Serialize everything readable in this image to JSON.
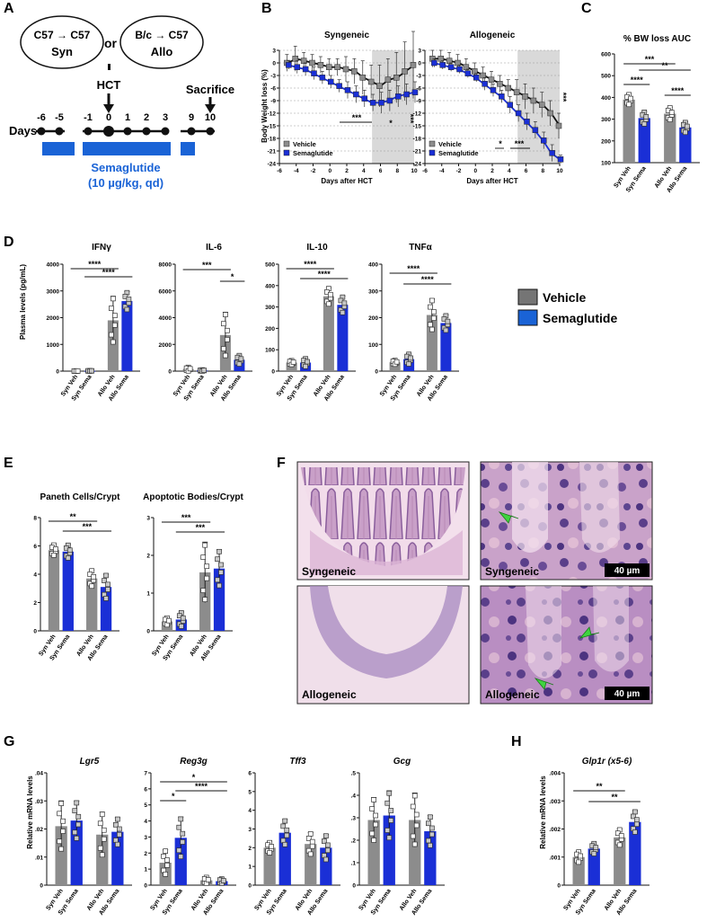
{
  "colors": {
    "vehicle": "#8c8c8c",
    "semaglutide": "#1a2fd6",
    "accent_blue": "#1a63d6",
    "shade": "#d9d9d9",
    "arrow_green": "#3fd43f"
  },
  "panel_letters": [
    "A",
    "B",
    "C",
    "D",
    "E",
    "F",
    "G",
    "H"
  ],
  "panelA": {
    "syn_label_top": "C57 → C57",
    "syn_label": "Syn",
    "or_label": "or",
    "allo_label_top": "B/c → C57",
    "allo_label": "Allo",
    "hct_label": "HCT",
    "sacrifice_label": "Sacrifice",
    "days_label": "Days",
    "day_ticks": [
      "-6",
      "-5",
      "-1",
      "0",
      "1",
      "2",
      "3",
      "9",
      "10"
    ],
    "drug_label": "Semaglutide",
    "dose_label": "(10 µg/kg, qd)"
  },
  "legend": {
    "vehicle": "Vehicle",
    "semaglutide": "Semaglutide"
  },
  "panelB": {
    "ylabel": "Body Weight loss (%)",
    "xlabel": "Days after HCT",
    "panels": [
      {
        "title": "Syngeneic",
        "stars": [
          "***",
          "*",
          "***"
        ]
      },
      {
        "title": "Allogeneic",
        "stars": [
          "*",
          "***",
          "***"
        ]
      }
    ]
  },
  "panelC": {
    "title": "% BW loss AUC"
  },
  "panelD": {
    "ylabel": "Plasma levels (pg/mL)"
  },
  "panelE": {},
  "panelF": {
    "labels": [
      "Syngeneic",
      "Syngeneic",
      "Allogeneic",
      "Allogeneic"
    ],
    "scalebar": "40 µm"
  },
  "panelG": {
    "ylabel": "Relative mRNA levels"
  },
  "panelH": {
    "ylabel": "Relative mRNA levels"
  },
  "chart_data": [
    {
      "id": "B-syn",
      "type": "line",
      "title": "Syngeneic",
      "xlabel": "Days after HCT",
      "ylabel": "Body Weight loss (%)",
      "xlim": [
        -6,
        10
      ],
      "ylim": [
        -24,
        3
      ],
      "xticks": [
        -6,
        -4,
        -2,
        0,
        2,
        4,
        6,
        8,
        10
      ],
      "yticks": [
        3,
        0,
        -3,
        -6,
        -9,
        -12,
        -15,
        -18,
        -21,
        -24
      ],
      "x": [
        -5,
        -4,
        -3,
        -2,
        -1,
        0,
        1,
        2,
        3,
        4,
        5,
        6,
        7,
        8,
        9,
        10
      ],
      "series": [
        {
          "name": "Vehicle",
          "values": [
            0,
            1,
            0.5,
            0,
            -0.5,
            -1,
            -1,
            -1.5,
            -2,
            -3.5,
            -4.5,
            -5.5,
            -4,
            -3.5,
            -2,
            -0.5
          ],
          "err": [
            2,
            3,
            2,
            2,
            2,
            2,
            2,
            3,
            3,
            4,
            4,
            5,
            5,
            6,
            7,
            8
          ]
        },
        {
          "name": "Semaglutide",
          "values": [
            -0.5,
            -1,
            -1.5,
            -2.5,
            -3.5,
            -4.5,
            -5.5,
            -6.5,
            -7.5,
            -8.5,
            -9.5,
            -9.5,
            -9,
            -8,
            -7.5,
            -7
          ],
          "err": [
            1,
            1.5,
            1.5,
            1.5,
            1.5,
            1.5,
            1.5,
            2,
            2,
            2,
            2,
            2.5,
            2.5,
            2.5,
            2.5,
            2.5
          ]
        }
      ],
      "shade_x": [
        5,
        10
      ],
      "grid": true,
      "legend": "bottom-left"
    },
    {
      "id": "B-allo",
      "type": "line",
      "title": "Allogeneic",
      "xlabel": "Days after HCT",
      "ylabel": "Body Weight loss (%)",
      "xlim": [
        -6,
        10
      ],
      "ylim": [
        -24,
        3
      ],
      "xticks": [
        -6,
        -4,
        -2,
        0,
        2,
        4,
        6,
        8,
        10
      ],
      "yticks": [
        3,
        0,
        -3,
        -6,
        -9,
        -12,
        -15,
        -18,
        -21,
        -24
      ],
      "x": [
        -5,
        -4,
        -3,
        -2,
        -1,
        0,
        1,
        2,
        3,
        4,
        5,
        6,
        7,
        8,
        9,
        10
      ],
      "series": [
        {
          "name": "Vehicle",
          "values": [
            1,
            1,
            0.5,
            0,
            -1,
            -2,
            -3,
            -4,
            -5,
            -6,
            -7,
            -8,
            -9,
            -10,
            -12,
            -15
          ],
          "err": [
            2,
            2,
            2,
            2,
            2,
            2,
            2,
            2,
            2,
            2,
            3,
            3,
            3,
            3,
            3,
            3
          ]
        },
        {
          "name": "Semaglutide",
          "values": [
            0,
            -0.5,
            -1,
            -1.5,
            -2.5,
            -3.5,
            -5,
            -6.5,
            -8,
            -10,
            -12,
            -14,
            -16,
            -18.5,
            -21.5,
            -23
          ],
          "err": [
            1,
            1,
            1,
            1,
            1,
            1,
            1.5,
            1.5,
            1.5,
            2,
            2,
            2,
            2,
            2,
            2,
            1
          ]
        }
      ],
      "shade_x": [
        5,
        10
      ],
      "grid": true,
      "legend": "bottom-left"
    },
    {
      "id": "C",
      "type": "bar",
      "title": "% BW loss AUC",
      "ylim": [
        100,
        600
      ],
      "yticks": [
        100,
        200,
        300,
        400,
        500,
        600
      ],
      "categories": [
        "Syn Veh",
        "Syn Sema",
        "Allo Veh",
        "Allo Sema"
      ],
      "values": [
        390,
        305,
        325,
        262
      ],
      "err": [
        25,
        30,
        30,
        25
      ],
      "sig": [
        {
          "a": 0,
          "b": 2,
          "label": "***"
        },
        {
          "a": 1,
          "b": 3,
          "label": "**"
        },
        {
          "a": 0,
          "b": 1,
          "label": "****"
        },
        {
          "a": 2,
          "b": 3,
          "label": "****"
        }
      ]
    },
    {
      "id": "D-IFNg",
      "type": "bar",
      "title": "IFNγ",
      "ylabel": "Plasma levels (pg/mL)",
      "ylim": [
        0,
        4000
      ],
      "yticks": [
        0,
        1000,
        2000,
        3000,
        4000
      ],
      "categories": [
        "Syn Veh",
        "Syn Sema",
        "Allo Veh",
        "Allo Sema"
      ],
      "values": [
        5,
        10,
        1900,
        2620
      ],
      "err": [
        5,
        10,
        900,
        350
      ],
      "sig": [
        {
          "a": 0,
          "b": 2,
          "label": "****"
        },
        {
          "a": 1,
          "b": 3,
          "label": "****"
        }
      ]
    },
    {
      "id": "D-IL6",
      "type": "bar",
      "title": "IL-6",
      "ylim": [
        0,
        8000
      ],
      "yticks": [
        0,
        2000,
        4000,
        6000,
        8000
      ],
      "categories": [
        "Syn Veh",
        "Syn Sema",
        "Allo Veh",
        "Allo Sema"
      ],
      "values": [
        150,
        50,
        2700,
        850
      ],
      "err": [
        150,
        50,
        1700,
        350
      ],
      "sig": [
        {
          "a": 0,
          "b": 2,
          "label": "***"
        },
        {
          "a": 2,
          "b": 3,
          "label": "*"
        }
      ]
    },
    {
      "id": "D-IL10",
      "type": "bar",
      "title": "IL-10",
      "ylim": [
        0,
        500
      ],
      "yticks": [
        0,
        100,
        200,
        300,
        400,
        500
      ],
      "categories": [
        "Syn Veh",
        "Syn Sema",
        "Allo Veh",
        "Allo Sema"
      ],
      "values": [
        40,
        40,
        350,
        310
      ],
      "err": [
        10,
        20,
        40,
        40
      ],
      "sig": [
        {
          "a": 0,
          "b": 2,
          "label": "****"
        },
        {
          "a": 1,
          "b": 3,
          "label": "****"
        }
      ]
    },
    {
      "id": "D-TNFa",
      "type": "bar",
      "title": "TNFα",
      "ylim": [
        0,
        400
      ],
      "yticks": [
        0,
        100,
        200,
        300,
        400
      ],
      "categories": [
        "Syn Veh",
        "Syn Sema",
        "Allo Veh",
        "Allo Sema"
      ],
      "values": [
        33,
        45,
        210,
        180
      ],
      "err": [
        8,
        20,
        60,
        30
      ],
      "sig": [
        {
          "a": 0,
          "b": 2,
          "label": "****"
        },
        {
          "a": 1,
          "b": 3,
          "label": "****"
        }
      ]
    },
    {
      "id": "E-Paneth",
      "type": "bar",
      "title": "Paneth Cells/Crypt",
      "ylim": [
        0,
        8
      ],
      "yticks": [
        0,
        2,
        4,
        6,
        8
      ],
      "categories": [
        "Syn Veh",
        "Syn Sema",
        "Allo Veh",
        "Allo Sema"
      ],
      "values": [
        5.7,
        5.6,
        3.7,
        3.1
      ],
      "err": [
        0.4,
        0.5,
        0.6,
        0.9
      ],
      "sig": [
        {
          "a": 0,
          "b": 2,
          "label": "**"
        },
        {
          "a": 1,
          "b": 3,
          "label": "***"
        }
      ]
    },
    {
      "id": "E-Apoptotic",
      "type": "bar",
      "title": "Apoptotic Bodies/Crypt",
      "ylim": [
        0,
        3
      ],
      "yticks": [
        0,
        1,
        2,
        3
      ],
      "categories": [
        "Syn Veh",
        "Syn Sema",
        "Allo Veh",
        "Allo Sema"
      ],
      "values": [
        0.25,
        0.3,
        1.55,
        1.65
      ],
      "err": [
        0.1,
        0.2,
        0.8,
        0.5
      ],
      "sig": [
        {
          "a": 0,
          "b": 2,
          "label": "***"
        },
        {
          "a": 1,
          "b": 3,
          "label": "***"
        }
      ]
    },
    {
      "id": "G-Lgr5",
      "type": "bar",
      "title": "Lgr5",
      "ylabel": "Relative mRNA levels",
      "ylim": [
        0,
        0.04
      ],
      "yticks": [
        0,
        0.01,
        0.02,
        0.03,
        0.04
      ],
      "categories": [
        "Syn Veh",
        "Syn Sema",
        "Allo Veh",
        "Allo Sema"
      ],
      "values": [
        0.021,
        0.023,
        0.018,
        0.019
      ],
      "err": [
        0.009,
        0.007,
        0.008,
        0.005
      ],
      "sig": []
    },
    {
      "id": "G-Reg3g",
      "type": "bar",
      "title": "Reg3g",
      "ylim": [
        0,
        7
      ],
      "yticks": [
        0,
        1,
        2,
        3,
        4,
        5,
        6,
        7
      ],
      "categories": [
        "Syn Veh",
        "Syn Sema",
        "Allo Veh",
        "Allo Sema"
      ],
      "values": [
        1.4,
        2.95,
        0.3,
        0.25
      ],
      "err": [
        0.8,
        1.3,
        0.2,
        0.15
      ],
      "sig": [
        {
          "a": 0,
          "b": 3,
          "label": "*"
        },
        {
          "a": 1,
          "b": 3,
          "label": "****"
        },
        {
          "a": 0,
          "b": 1,
          "label": "*"
        }
      ]
    },
    {
      "id": "G-Tff3",
      "type": "bar",
      "title": "Tff3",
      "ylim": [
        0,
        6
      ],
      "yticks": [
        0,
        1,
        2,
        3,
        4,
        5,
        6
      ],
      "categories": [
        "Syn Veh",
        "Syn Sema",
        "Allo Veh",
        "Allo Sema"
      ],
      "values": [
        2.0,
        2.8,
        2.2,
        2.0
      ],
      "err": [
        0.3,
        0.7,
        0.6,
        0.7
      ],
      "sig": []
    },
    {
      "id": "G-Gcg",
      "type": "bar",
      "title": "Gcg",
      "ylim": [
        0,
        0.5
      ],
      "yticks": [
        0,
        0.1,
        0.2,
        0.3,
        0.4,
        0.5
      ],
      "categories": [
        "Syn Veh",
        "Syn Sema",
        "Allo Veh",
        "Allo Sema"
      ],
      "values": [
        0.29,
        0.31,
        0.29,
        0.24
      ],
      "err": [
        0.1,
        0.11,
        0.12,
        0.07
      ],
      "sig": []
    },
    {
      "id": "H-Glp1r",
      "type": "bar",
      "title": "Glp1r (x5-6)",
      "ylabel": "Relative mRNA levels",
      "ylim": [
        0,
        0.004
      ],
      "yticks": [
        0,
        0.001,
        0.002,
        0.003,
        0.004
      ],
      "categories": [
        "Syn Veh",
        "Syn Sema",
        "Allo Veh",
        "Allo Sema"
      ],
      "values": [
        0.001,
        0.0013,
        0.0017,
        0.00225
      ],
      "err": [
        0.0002,
        0.0002,
        0.0003,
        0.0004
      ],
      "sig": [
        {
          "a": 0,
          "b": 2,
          "label": "**"
        },
        {
          "a": 1,
          "b": 3,
          "label": "**"
        }
      ]
    }
  ]
}
